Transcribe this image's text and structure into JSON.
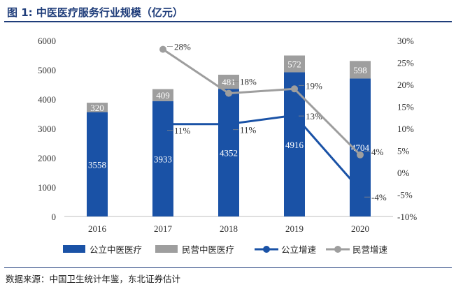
{
  "figure": {
    "title": "图 1:  中医医疗服务行业规模（亿元）",
    "source": "数据来源：中国卫生统计年鉴，东北证券估计"
  },
  "chart_data": {
    "type": "bar",
    "stacked": true,
    "categories": [
      "2016",
      "2017",
      "2018",
      "2019",
      "2020"
    ],
    "series": [
      {
        "name": "公立中医医疗",
        "kind": "bar",
        "axis": "left",
        "color": "#1a52a6",
        "values": [
          3558,
          3933,
          4352,
          4916,
          4704
        ],
        "labels": [
          "3558",
          "3933",
          "4352",
          "4916",
          "4704"
        ]
      },
      {
        "name": "民营中医医疗",
        "kind": "bar",
        "axis": "left",
        "color": "#9e9e9e",
        "values": [
          320,
          409,
          481,
          572,
          598
        ],
        "labels": [
          "320",
          "409",
          "481",
          "572",
          "598"
        ]
      },
      {
        "name": "公立增速",
        "kind": "line",
        "axis": "right",
        "color": "#1a52a6",
        "values": [
          null,
          11,
          11,
          13,
          -4
        ],
        "labels": [
          "",
          "11%",
          "11%",
          "13%",
          "-4%"
        ]
      },
      {
        "name": "民营增速",
        "kind": "line",
        "axis": "right",
        "color": "#9e9e9e",
        "values": [
          null,
          28,
          18,
          19,
          4
        ],
        "labels": [
          "",
          "28%",
          "18%",
          "19%",
          "4%"
        ]
      }
    ],
    "y_left": {
      "min": 0,
      "max": 6000,
      "ticks": [
        "0",
        "1000",
        "2000",
        "3000",
        "4000",
        "5000",
        "6000"
      ]
    },
    "y_right": {
      "min": -10,
      "max": 30,
      "ticks": [
        "-10%",
        "-5%",
        "0%",
        "5%",
        "10%",
        "15%",
        "20%",
        "25%",
        "30%"
      ]
    },
    "grid": false,
    "legend_position": "bottom"
  }
}
